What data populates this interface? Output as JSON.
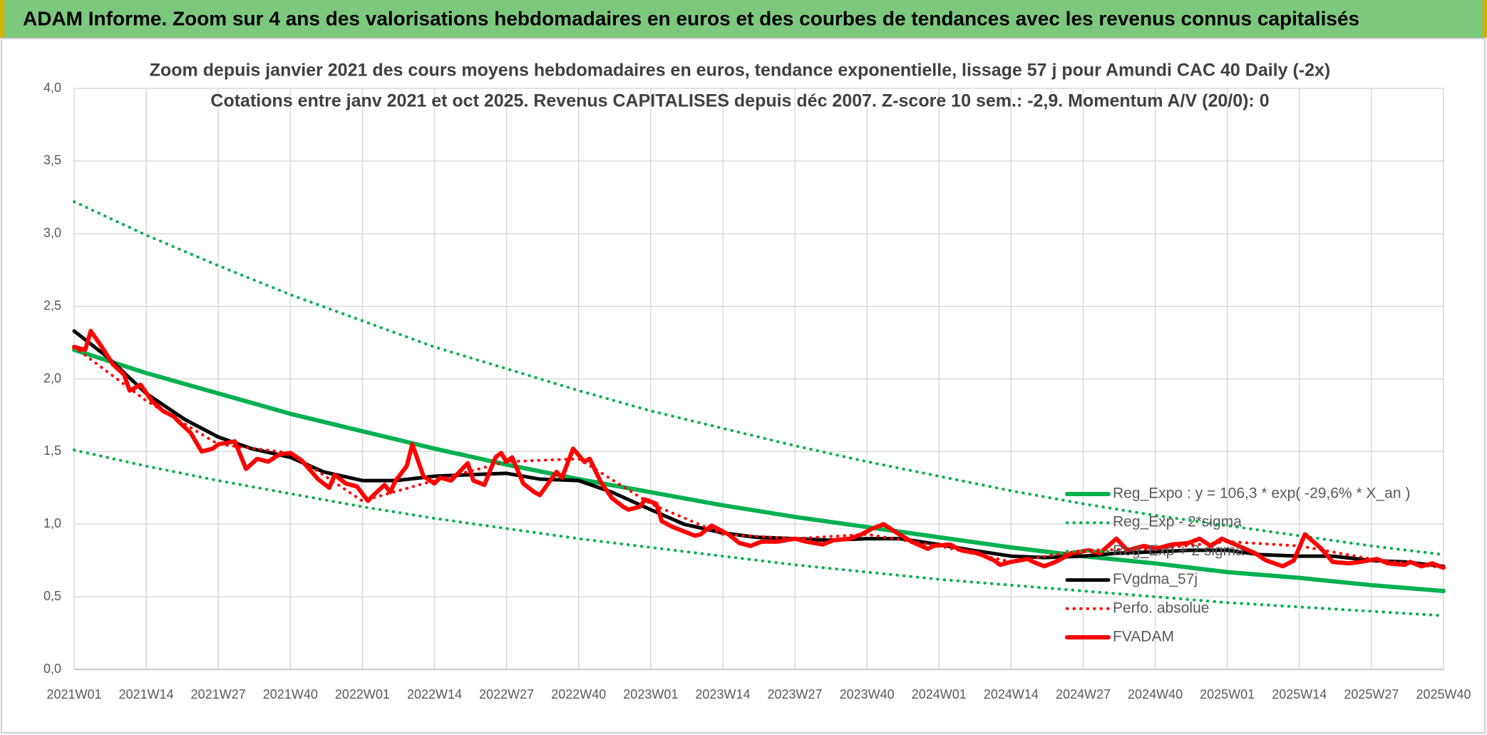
{
  "header": {
    "title": "ADAM Informe. Zoom sur 4 ans des valorisations hebdomadaires en euros et des courbes de tendances avec les revenus connus capitalisés"
  },
  "chart_data": {
    "type": "line",
    "title": "Zoom depuis janvier 2021 des cours moyens hebdomadaires en euros, tendance exponentielle, lissage 57 j pour Amundi CAC 40 Daily (-2x)",
    "subtitle": "Cotations entre janv 2021 et oct 2025. Revenus CAPITALISES depuis déc 2007. Z-score 10 sem.: -2,9. Momentum A/V (20/0): 0",
    "xlim": [
      0,
      247
    ],
    "xticks": [
      {
        "value": 0,
        "label": "2021W01"
      },
      {
        "value": 13,
        "label": "2021W14"
      },
      {
        "value": 26,
        "label": "2021W27"
      },
      {
        "value": 39,
        "label": "2021W40"
      },
      {
        "value": 52,
        "label": "2022W01"
      },
      {
        "value": 65,
        "label": "2022W14"
      },
      {
        "value": 78,
        "label": "2022W27"
      },
      {
        "value": 91,
        "label": "2022W40"
      },
      {
        "value": 104,
        "label": "2023W01"
      },
      {
        "value": 117,
        "label": "2023W14"
      },
      {
        "value": 130,
        "label": "2023W27"
      },
      {
        "value": 143,
        "label": "2023W40"
      },
      {
        "value": 156,
        "label": "2024W01"
      },
      {
        "value": 169,
        "label": "2024W14"
      },
      {
        "value": 182,
        "label": "2024W27"
      },
      {
        "value": 195,
        "label": "2024W40"
      },
      {
        "value": 208,
        "label": "2025W01"
      },
      {
        "value": 221,
        "label": "2025W14"
      },
      {
        "value": 234,
        "label": "2025W27"
      },
      {
        "value": 247,
        "label": "2025W40"
      }
    ],
    "ylim": [
      0,
      4
    ],
    "yticks": [
      {
        "value": 0,
        "label": "0,0"
      },
      {
        "value": 0.5,
        "label": "0,5"
      },
      {
        "value": 1,
        "label": "1,0"
      },
      {
        "value": 1.5,
        "label": "1,5"
      },
      {
        "value": 2,
        "label": "2,0"
      },
      {
        "value": 2.5,
        "label": "2,5"
      },
      {
        "value": 3,
        "label": "3,0"
      },
      {
        "value": 3.5,
        "label": "3,5"
      },
      {
        "value": 4,
        "label": "4,0"
      }
    ],
    "grid": true,
    "legend": "right",
    "series": [
      {
        "name": "Reg_Expo : y = 106,3 * exp( -29,6% *  X_an )",
        "color": "#00b050",
        "style": "solid",
        "x": [
          0,
          13,
          26,
          39,
          52,
          65,
          78,
          91,
          104,
          117,
          130,
          143,
          156,
          169,
          182,
          195,
          208,
          221,
          234,
          247
        ],
        "values": [
          2.2,
          2.04,
          1.9,
          1.76,
          1.64,
          1.52,
          1.41,
          1.31,
          1.22,
          1.13,
          1.05,
          0.98,
          0.91,
          0.84,
          0.78,
          0.73,
          0.67,
          0.63,
          0.58,
          0.54
        ]
      },
      {
        "name": "Reg_Exp - 2*sigma",
        "color": "#00b050",
        "style": "dotted",
        "x": [
          0,
          13,
          26,
          39,
          52,
          65,
          78,
          91,
          104,
          117,
          130,
          143,
          156,
          169,
          182,
          195,
          208,
          221,
          234,
          247
        ],
        "values": [
          1.51,
          1.4,
          1.3,
          1.21,
          1.12,
          1.04,
          0.97,
          0.9,
          0.84,
          0.78,
          0.72,
          0.67,
          0.62,
          0.58,
          0.54,
          0.5,
          0.46,
          0.43,
          0.4,
          0.37
        ]
      },
      {
        "name": "Reg_Exp + 2 sigma",
        "color": "#00b050",
        "style": "dotted",
        "x": [
          0,
          13,
          26,
          39,
          52,
          65,
          78,
          91,
          104,
          117,
          130,
          143,
          156,
          169,
          182,
          195,
          208,
          221,
          234,
          247
        ],
        "values": [
          3.22,
          2.99,
          2.78,
          2.58,
          2.4,
          2.22,
          2.07,
          1.92,
          1.78,
          1.66,
          1.54,
          1.43,
          1.33,
          1.23,
          1.14,
          1.06,
          0.99,
          0.92,
          0.85,
          0.79
        ]
      },
      {
        "name": "FVgdma_57j",
        "color": "#000000",
        "style": "solid",
        "x": [
          0,
          6,
          13,
          20,
          26,
          32,
          39,
          45,
          52,
          58,
          65,
          71,
          78,
          84,
          91,
          97,
          104,
          110,
          117,
          123,
          130,
          136,
          143,
          149,
          156,
          162,
          169,
          175,
          182,
          188,
          195,
          201,
          208,
          214,
          221,
          227,
          234,
          240,
          247
        ],
        "values": [
          2.33,
          2.15,
          1.9,
          1.72,
          1.6,
          1.52,
          1.46,
          1.36,
          1.3,
          1.3,
          1.33,
          1.34,
          1.35,
          1.31,
          1.3,
          1.22,
          1.1,
          1.0,
          0.94,
          0.91,
          0.9,
          0.89,
          0.9,
          0.9,
          0.86,
          0.82,
          0.78,
          0.77,
          0.78,
          0.8,
          0.81,
          0.82,
          0.82,
          0.79,
          0.78,
          0.78,
          0.75,
          0.74,
          0.71
        ]
      },
      {
        "name": "Perfo. absolue",
        "color": "#ff0000",
        "style": "dotted",
        "x": [
          0,
          13,
          26,
          39,
          52,
          65,
          78,
          91,
          104,
          117,
          130,
          143,
          156,
          169,
          182,
          195,
          208,
          221,
          234,
          247
        ],
        "values": [
          2.22,
          1.85,
          1.55,
          1.49,
          1.16,
          1.3,
          1.43,
          1.45,
          1.14,
          0.93,
          0.9,
          0.93,
          0.85,
          0.74,
          0.82,
          0.83,
          0.88,
          0.85,
          0.76,
          0.7
        ]
      },
      {
        "name": "FVADAM",
        "color": "#ff0000",
        "style": "solid",
        "x": [
          0,
          2,
          3,
          5,
          7,
          9,
          10,
          12,
          14,
          16,
          18,
          19,
          21,
          23,
          25,
          26,
          29,
          31,
          33,
          35,
          37,
          39,
          41,
          44,
          46,
          47,
          49,
          51,
          53,
          54,
          56,
          57,
          58,
          60,
          61,
          63,
          65,
          66,
          68,
          71,
          72,
          74,
          76,
          77,
          78,
          79,
          81,
          83,
          84,
          87,
          88,
          90,
          92,
          93,
          95,
          97,
          99,
          100,
          102,
          103,
          105,
          106,
          108,
          110,
          112,
          113,
          115,
          118,
          120,
          122,
          124,
          127,
          130,
          132,
          135,
          137,
          140,
          142,
          144,
          146,
          148,
          151,
          154,
          155,
          158,
          160,
          163,
          166,
          167,
          169,
          172,
          173,
          175,
          177,
          180,
          183,
          185,
          188,
          190,
          193,
          195,
          198,
          201,
          203,
          205,
          207,
          210,
          213,
          215,
          218,
          220,
          222,
          225,
          227,
          230,
          232,
          235,
          237,
          240,
          241,
          243,
          245,
          247
        ],
        "values": [
          2.22,
          2.2,
          2.33,
          2.22,
          2.1,
          2.03,
          1.92,
          1.96,
          1.85,
          1.78,
          1.74,
          1.7,
          1.63,
          1.5,
          1.52,
          1.55,
          1.57,
          1.38,
          1.45,
          1.43,
          1.48,
          1.49,
          1.44,
          1.31,
          1.25,
          1.34,
          1.28,
          1.26,
          1.16,
          1.2,
          1.27,
          1.22,
          1.3,
          1.4,
          1.55,
          1.33,
          1.28,
          1.32,
          1.3,
          1.42,
          1.3,
          1.27,
          1.46,
          1.49,
          1.43,
          1.46,
          1.28,
          1.22,
          1.2,
          1.36,
          1.32,
          1.52,
          1.43,
          1.45,
          1.29,
          1.18,
          1.12,
          1.1,
          1.12,
          1.17,
          1.14,
          1.02,
          0.98,
          0.95,
          0.92,
          0.93,
          0.99,
          0.93,
          0.87,
          0.85,
          0.88,
          0.88,
          0.9,
          0.88,
          0.86,
          0.89,
          0.9,
          0.93,
          0.97,
          1.0,
          0.95,
          0.88,
          0.83,
          0.85,
          0.86,
          0.82,
          0.8,
          0.75,
          0.72,
          0.74,
          0.76,
          0.74,
          0.71,
          0.74,
          0.8,
          0.82,
          0.8,
          0.9,
          0.82,
          0.85,
          0.83,
          0.86,
          0.87,
          0.9,
          0.85,
          0.9,
          0.85,
          0.8,
          0.75,
          0.71,
          0.75,
          0.93,
          0.83,
          0.74,
          0.73,
          0.74,
          0.76,
          0.73,
          0.72,
          0.74,
          0.71,
          0.73,
          0.7
        ]
      }
    ]
  }
}
